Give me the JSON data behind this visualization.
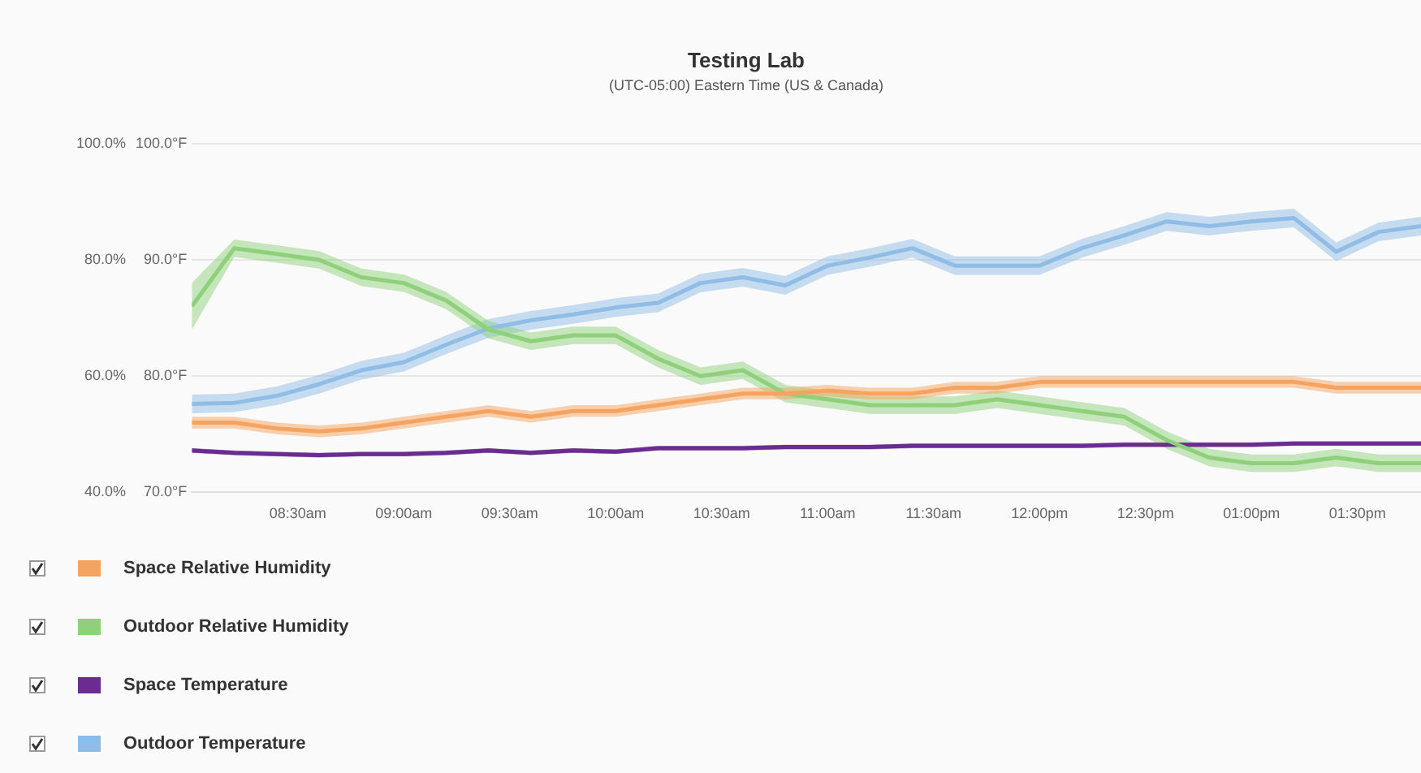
{
  "chart_data": {
    "type": "line",
    "title": "Testing Lab",
    "subtitle": "(UTC-05:00) Eastern Time (US & Canada)",
    "x": [
      8.0,
      8.2,
      8.4,
      8.6,
      8.8,
      9.0,
      9.2,
      9.4,
      9.6,
      9.8,
      10.0,
      10.2,
      10.4,
      10.6,
      10.8,
      11.0,
      11.2,
      11.4,
      11.6,
      11.8,
      12.0,
      12.2,
      12.4,
      12.6,
      12.8,
      13.0,
      13.2,
      13.4,
      13.6,
      13.8
    ],
    "xlim": [
      8.0,
      13.8
    ],
    "xticks": [
      {
        "value": 8.5,
        "label": "08:30am"
      },
      {
        "value": 9,
        "label": "09:00am"
      },
      {
        "value": 9.5,
        "label": "09:30am"
      },
      {
        "value": 10,
        "label": "10:00am"
      },
      {
        "value": 10.5,
        "label": "10:30am"
      },
      {
        "value": 11,
        "label": "11:00am"
      },
      {
        "value": 11.5,
        "label": "11:30am"
      },
      {
        "value": 12,
        "label": "12:00pm"
      },
      {
        "value": 12.5,
        "label": "12:30pm"
      },
      {
        "value": 13,
        "label": "01:00pm"
      },
      {
        "value": 13.5,
        "label": "01:30pm"
      }
    ],
    "ylim": [
      40,
      100
    ],
    "yticks": [
      {
        "value": 40,
        "label": "40.0%"
      },
      {
        "value": 60,
        "label": "60.0%"
      },
      {
        "value": 80,
        "label": "80.0%"
      },
      {
        "value": 100,
        "label": "100.0%"
      }
    ],
    "y2lim": [
      70,
      100
    ],
    "y2ticks": [
      {
        "value": 70,
        "label": "70.0°F"
      },
      {
        "value": 80,
        "label": "80.0°F"
      },
      {
        "value": 90,
        "label": "90.0°F"
      },
      {
        "value": 100,
        "label": "100.0°F"
      }
    ],
    "grid": "y",
    "legend": "bottom left",
    "marker": "none",
    "series": [
      {
        "name": "Space Relative Humidity",
        "color": "#f4a460",
        "values": [
          52,
          52,
          51,
          50.5,
          51,
          52,
          53,
          54,
          53,
          54,
          54,
          55,
          56,
          57,
          57,
          57.5,
          57,
          57,
          58,
          58,
          59,
          59,
          59,
          59,
          59,
          59,
          59,
          58,
          58,
          58
        ],
        "lower": [
          51,
          51,
          50,
          49.5,
          50,
          51,
          52,
          53,
          52,
          53,
          53,
          54,
          55,
          56,
          56,
          56.5,
          56,
          56,
          57,
          57,
          58,
          58,
          58,
          58,
          58,
          58,
          58,
          57,
          57,
          57
        ],
        "upper": [
          53,
          53,
          52,
          51.5,
          52,
          53,
          54,
          55,
          54,
          55,
          55,
          56,
          57,
          58,
          58,
          58.5,
          58,
          58,
          59,
          59,
          60,
          60,
          60,
          60,
          60,
          60,
          60,
          59,
          59,
          59
        ]
      },
      {
        "name": "Outdoor Relative Humidity",
        "color": "#8fd07a",
        "values": [
          72,
          82,
          81,
          80,
          77,
          76,
          73,
          68,
          66,
          67,
          67,
          63,
          60,
          61,
          57,
          56,
          55,
          55,
          55,
          56,
          55,
          54,
          53,
          49,
          46,
          45,
          45,
          46,
          45,
          45
        ],
        "lower": [
          68,
          80.5,
          79.5,
          78.5,
          75.5,
          74.5,
          71.5,
          66.5,
          64.5,
          65.5,
          65.5,
          61.5,
          58.5,
          59.5,
          55.5,
          54.5,
          53.5,
          53.5,
          53.5,
          54.5,
          53.5,
          52.5,
          51.5,
          47.5,
          44.5,
          43.5,
          43.5,
          44.5,
          43.5,
          43.5
        ],
        "upper": [
          76,
          83.5,
          82.5,
          81.5,
          78.5,
          77.5,
          74.5,
          69.5,
          67.5,
          68.5,
          68.5,
          64.5,
          61.5,
          62.5,
          58.5,
          57.5,
          56.5,
          56.5,
          56.5,
          57.5,
          56.5,
          55.5,
          54.5,
          50.5,
          47.5,
          46.5,
          46.5,
          47.5,
          46.5,
          46.5
        ]
      },
      {
        "name": "Space Temperature",
        "color": "#6a2c91",
        "axis": "y2",
        "values": [
          73.6,
          73.4,
          73.3,
          73.2,
          73.3,
          73.3,
          73.4,
          73.6,
          73.4,
          73.6,
          73.5,
          73.8,
          73.8,
          73.8,
          73.9,
          73.9,
          73.9,
          74,
          74,
          74,
          74,
          74,
          74.1,
          74.1,
          74.1,
          74.1,
          74.2,
          74.2,
          74.2,
          74.2
        ],
        "lower": [
          73.4,
          73.2,
          73.1,
          73,
          73.1,
          73.1,
          73.2,
          73.4,
          73.2,
          73.4,
          73.3,
          73.6,
          73.6,
          73.6,
          73.7,
          73.7,
          73.7,
          73.8,
          73.8,
          73.8,
          73.8,
          73.8,
          73.9,
          73.9,
          73.9,
          73.9,
          74,
          74,
          74,
          74
        ],
        "upper": [
          73.8,
          73.6,
          73.5,
          73.4,
          73.5,
          73.5,
          73.6,
          73.8,
          73.6,
          73.8,
          73.7,
          74,
          74,
          74,
          74.1,
          74.1,
          74.1,
          74.2,
          74.2,
          74.2,
          74.2,
          74.2,
          74.3,
          74.3,
          74.3,
          74.3,
          74.4,
          74.4,
          74.4,
          74.4
        ]
      },
      {
        "name": "Outdoor Temperature",
        "color": "#8fbde6",
        "axis": "y2",
        "values": [
          77.6,
          77.7,
          78.3,
          79.3,
          80.5,
          81.2,
          82.7,
          84.1,
          84.8,
          85.3,
          85.9,
          86.3,
          88,
          88.5,
          87.8,
          89.5,
          90.2,
          91,
          89.5,
          89.5,
          89.5,
          91,
          92.1,
          93.3,
          92.9,
          93.3,
          93.6,
          90.7,
          92.4,
          92.9
        ],
        "lower": [
          76.8,
          76.9,
          77.5,
          78.5,
          79.7,
          80.4,
          81.9,
          83.3,
          84,
          84.5,
          85.1,
          85.5,
          87.2,
          87.7,
          87,
          88.7,
          89.4,
          90.2,
          88.7,
          88.7,
          88.7,
          90.2,
          91.3,
          92.5,
          92.1,
          92.5,
          92.8,
          89.9,
          91.6,
          92.1
        ],
        "upper": [
          78.4,
          78.5,
          79.1,
          80.1,
          81.3,
          82,
          83.5,
          84.9,
          85.6,
          86.1,
          86.7,
          87.1,
          88.8,
          89.3,
          88.6,
          90.3,
          91,
          91.8,
          90.3,
          90.3,
          90.3,
          91.8,
          92.9,
          94.1,
          93.7,
          94.1,
          94.4,
          91.5,
          93.2,
          93.7
        ]
      }
    ]
  }
}
